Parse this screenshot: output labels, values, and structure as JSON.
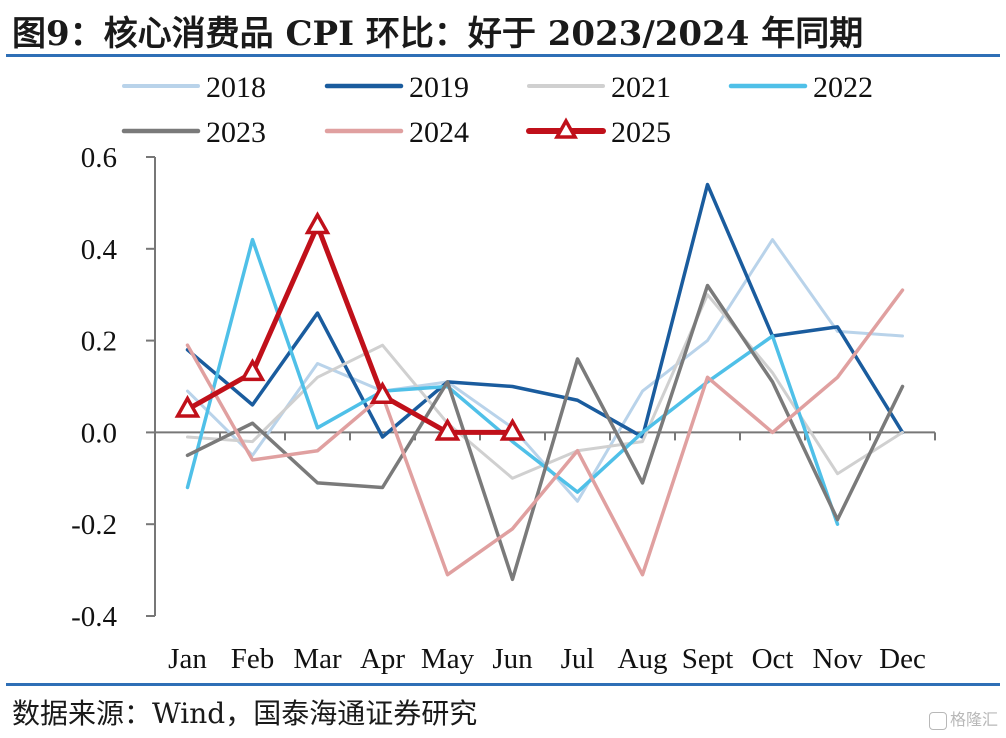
{
  "title": "图9：核心消费品 CPI 环比：好于 2023/2024 年同期",
  "source": "数据来源：Wind，国泰海通证券研究",
  "watermark": "格隆汇",
  "chart_data": {
    "type": "line",
    "categories": [
      "Jan",
      "Feb",
      "Mar",
      "Apr",
      "May",
      "Jun",
      "Jul",
      "Aug",
      "Sept",
      "Oct",
      "Nov",
      "Dec"
    ],
    "ylim": [
      -0.4,
      0.6
    ],
    "yticks": [
      "0.6",
      "0.4",
      "0.2",
      "0.0",
      "-0.2",
      "-0.4"
    ],
    "yticks_values": [
      0.6,
      0.4,
      0.2,
      0.0,
      -0.2,
      -0.4
    ],
    "grid": false,
    "legend": "top",
    "series": [
      {
        "name": "2018",
        "color": "#b9d3ea",
        "width": 3,
        "marker": null,
        "values": [
          0.09,
          -0.05,
          0.15,
          0.09,
          0.11,
          0.01,
          -0.15,
          0.09,
          0.2,
          0.42,
          0.22,
          0.21
        ]
      },
      {
        "name": "2019",
        "color": "#1a5c9e",
        "width": 3.5,
        "marker": null,
        "values": [
          0.18,
          0.06,
          0.26,
          -0.01,
          0.11,
          0.1,
          0.07,
          -0.01,
          0.54,
          0.21,
          0.23,
          0.0
        ]
      },
      {
        "name": "2021",
        "color": "#d0d0d0",
        "width": 3,
        "marker": null,
        "values": [
          -0.01,
          -0.02,
          0.12,
          0.19,
          0.02,
          -0.1,
          -0.04,
          -0.02,
          0.3,
          0.13,
          -0.09,
          0.0
        ]
      },
      {
        "name": "2022",
        "color": "#4fc0e8",
        "width": 3.5,
        "marker": null,
        "values": [
          -0.12,
          0.42,
          0.01,
          0.09,
          0.1,
          -0.02,
          -0.13,
          0.0,
          0.11,
          0.21,
          -0.2,
          null
        ]
      },
      {
        "name": "2023",
        "color": "#7a7a7a",
        "width": 3.5,
        "marker": null,
        "values": [
          -0.05,
          0.02,
          -0.11,
          -0.12,
          0.11,
          -0.32,
          0.16,
          -0.11,
          0.32,
          0.11,
          -0.19,
          0.1
        ]
      },
      {
        "name": "2024",
        "color": "#e0a0a0",
        "width": 3.5,
        "marker": null,
        "values": [
          0.19,
          -0.06,
          -0.04,
          0.08,
          -0.31,
          -0.21,
          -0.04,
          -0.31,
          0.12,
          0.0,
          0.12,
          0.31
        ]
      },
      {
        "name": "2025",
        "color": "#c0101a",
        "width": 5,
        "marker": "triangle",
        "values": [
          0.05,
          0.13,
          0.45,
          0.08,
          0.0,
          0.0,
          null,
          null,
          null,
          null,
          null,
          null
        ]
      }
    ]
  }
}
